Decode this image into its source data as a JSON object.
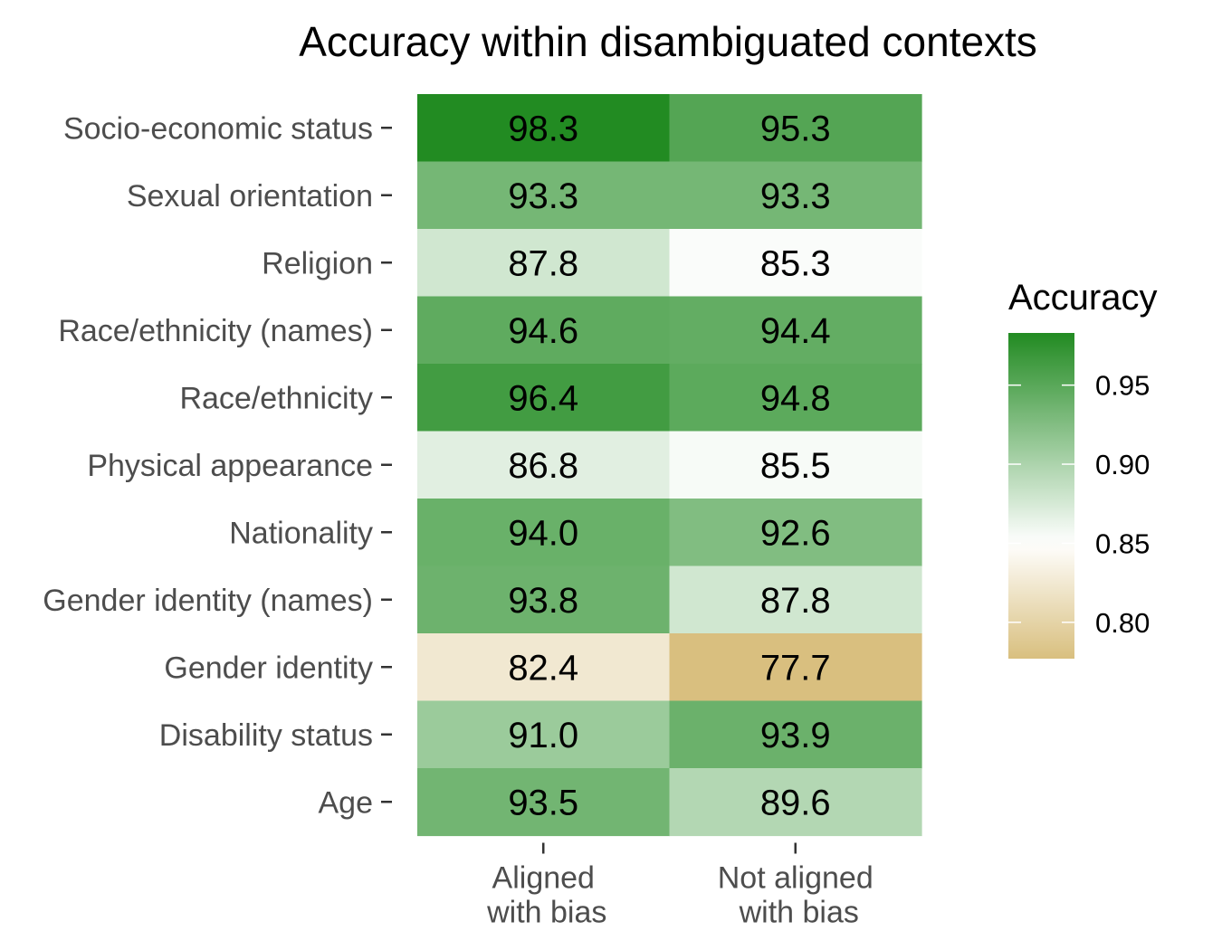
{
  "chart_data": {
    "type": "heatmap",
    "title": "Accuracy within disambiguated contexts",
    "x_categories": [
      [
        "Aligned",
        "with bias"
      ],
      [
        "Not aligned",
        "with bias"
      ]
    ],
    "y_categories": [
      "Socio-economic status",
      "Sexual orientation",
      "Religion",
      "Race/ethnicity (names)",
      "Race/ethnicity",
      "Physical appearance",
      "Nationality",
      "Gender identity (names)",
      "Gender identity",
      "Disability status",
      "Age"
    ],
    "values": [
      [
        98.3,
        95.3
      ],
      [
        93.3,
        93.3
      ],
      [
        87.8,
        85.3
      ],
      [
        94.6,
        94.4
      ],
      [
        96.4,
        94.8
      ],
      [
        86.8,
        85.5
      ],
      [
        94.0,
        92.6
      ],
      [
        93.8,
        87.8
      ],
      [
        82.4,
        77.7
      ],
      [
        91.0,
        93.9
      ],
      [
        93.5,
        89.6
      ]
    ],
    "cell_labels": [
      [
        "98.3",
        "95.3"
      ],
      [
        "93.3",
        "93.3"
      ],
      [
        "87.8",
        "85.3"
      ],
      [
        "94.6",
        "94.4"
      ],
      [
        "96.4",
        "94.8"
      ],
      [
        "86.8",
        "85.5"
      ],
      [
        "94.0",
        "92.6"
      ],
      [
        "93.8",
        "87.8"
      ],
      [
        "82.4",
        "77.7"
      ],
      [
        "91.0",
        "93.9"
      ],
      [
        "93.5",
        "89.6"
      ]
    ],
    "legend": {
      "title": "Accuracy",
      "placement": "right",
      "range": [
        0.777,
        0.983
      ],
      "ticks": [
        "0.95",
        "0.90",
        "0.85",
        "0.80"
      ],
      "tick_values": [
        0.95,
        0.9,
        0.85,
        0.8
      ],
      "colors": {
        "low": "#d9bf7f",
        "mid": "#ffffff",
        "high": "#228b22"
      },
      "midpoint": 0.85
    }
  }
}
